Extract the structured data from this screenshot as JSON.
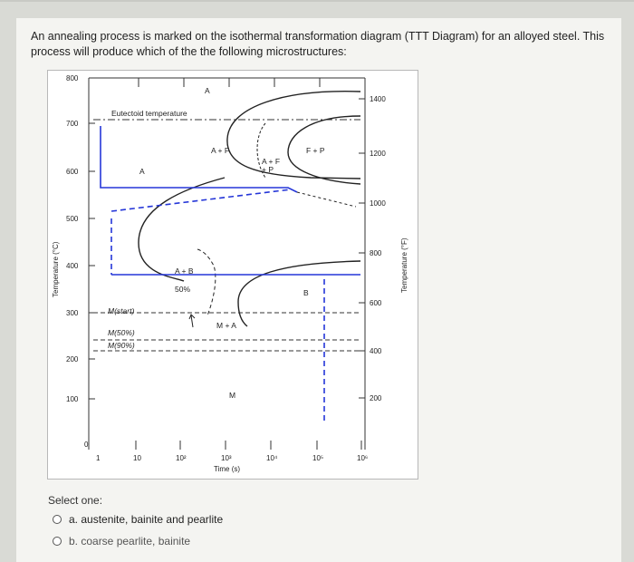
{
  "question": {
    "text": "An annealing process is marked on the isothermal transformation diagram (TTT Diagram) for an alloyed steel. This process will produce which of the the following microstructures:"
  },
  "chart_data": {
    "type": "diagram",
    "x_axis_title": "Time (s)",
    "y_axis_left_title": "Temperature (°C)",
    "y_axis_right_title": "Temperature (°F)",
    "x_ticks": [
      "1",
      "10",
      "10²",
      "10³",
      "10⁴",
      "10⁵",
      "10⁶"
    ],
    "y_left_ticks": [
      "800",
      "700",
      "600",
      "500",
      "400",
      "300",
      "200",
      "100",
      "0"
    ],
    "y_right_ticks": [
      "1400",
      "1200",
      "1000",
      "800",
      "600",
      "400",
      "200"
    ],
    "eutectoid_label": "Eutectoid temperature",
    "region_labels": {
      "a_top": "A",
      "a_left": "A",
      "a_plus_f": "A + F",
      "a_f_p_1": "A + F",
      "a_f_p_2": "+ P",
      "f_plus_p": "F + P",
      "a_plus_b": "A + B",
      "fifty": "50%",
      "b": "B",
      "m_start": "M(start)",
      "m_plus_a": "M + A",
      "m50": "M(50%)",
      "m90": "M(90%)",
      "m": "M"
    }
  },
  "answers": {
    "select_label": "Select one:",
    "option_a": "a. austenite, bainite and pearlite",
    "option_b": "b. coarse pearlite, bainite"
  }
}
